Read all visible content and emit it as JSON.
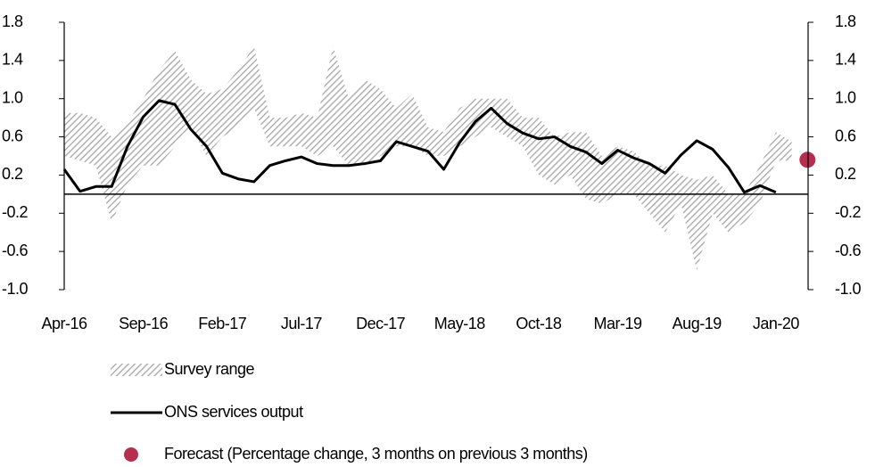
{
  "chart_data": {
    "type": "line",
    "categories": [
      "Apr-16",
      null,
      null,
      null,
      null,
      "Sep-16",
      null,
      null,
      null,
      null,
      "Feb-17",
      null,
      null,
      null,
      null,
      "Jul-17",
      null,
      null,
      null,
      null,
      "Dec-17",
      null,
      null,
      null,
      null,
      "May-18",
      null,
      null,
      null,
      null,
      "Oct-18",
      null,
      null,
      null,
      null,
      "Mar-19",
      null,
      null,
      null,
      null,
      "Aug-19",
      null,
      null,
      null,
      null,
      "Jan-20",
      null,
      null
    ],
    "series": [
      {
        "name": "Survey range",
        "type": "range",
        "color": "#a6a6a6",
        "low": [
          0.4,
          0.35,
          0.3,
          -0.3,
          0.1,
          0.3,
          0.3,
          0.5,
          0.7,
          0.4,
          0.6,
          0.7,
          0.9,
          0.5,
          0.5,
          0.5,
          0.4,
          0.5,
          0.3,
          0.3,
          0.4,
          0.5,
          0.5,
          0.4,
          0.4,
          0.5,
          0.6,
          0.7,
          0.6,
          0.5,
          0.2,
          0.1,
          0.2,
          -0.05,
          -0.1,
          0.0,
          0.0,
          -0.2,
          -0.4,
          -0.1,
          -0.8,
          -0.2,
          -0.4,
          -0.3,
          -0.1,
          0.35,
          0.35,
          null
        ],
        "high": [
          0.85,
          0.85,
          0.8,
          0.6,
          0.75,
          1.0,
          1.3,
          1.5,
          1.2,
          1.05,
          1.1,
          1.3,
          1.55,
          0.8,
          0.8,
          0.85,
          0.8,
          1.55,
          1.0,
          1.2,
          1.1,
          0.9,
          1.05,
          0.7,
          0.65,
          0.9,
          1.0,
          1.0,
          1.0,
          0.8,
          0.8,
          0.6,
          0.65,
          0.65,
          0.4,
          0.5,
          0.45,
          0.3,
          0.3,
          0.2,
          0.15,
          0.2,
          0.0,
          0.0,
          0.3,
          0.65,
          0.55,
          null
        ]
      },
      {
        "name": "ONS services output",
        "type": "line",
        "color": "#000000",
        "values": [
          0.26,
          0.03,
          0.08,
          0.08,
          0.5,
          0.81,
          0.98,
          0.94,
          0.68,
          0.5,
          0.22,
          0.16,
          0.13,
          0.3,
          0.35,
          0.39,
          0.32,
          0.3,
          0.3,
          0.32,
          0.35,
          0.55,
          0.5,
          0.45,
          0.26,
          0.54,
          0.76,
          0.9,
          0.74,
          0.64,
          0.58,
          0.6,
          0.5,
          0.44,
          0.32,
          0.46,
          0.38,
          0.32,
          0.22,
          0.41,
          0.56,
          0.47,
          0.28,
          0.02,
          0.09,
          0.02,
          null,
          null
        ]
      },
      {
        "name": "Forecast (Percentage change, 3 months on previous 3 months)",
        "type": "dot",
        "color": "#b5304f",
        "values": [
          null,
          null,
          null,
          null,
          null,
          null,
          null,
          null,
          null,
          null,
          null,
          null,
          null,
          null,
          null,
          null,
          null,
          null,
          null,
          null,
          null,
          null,
          null,
          null,
          null,
          null,
          null,
          null,
          null,
          null,
          null,
          null,
          null,
          null,
          null,
          null,
          null,
          null,
          null,
          null,
          null,
          null,
          null,
          null,
          null,
          null,
          null,
          0.36
        ]
      }
    ],
    "ylim": [
      -1.0,
      1.8
    ],
    "yticks": [
      {
        "value": -1,
        "label": "-1.0"
      },
      -0.6,
      -0.2,
      0.2,
      0.6,
      {
        "value": 1,
        "label": "1.0"
      },
      1.4,
      1.8
    ],
    "y2lim": [
      -1.0,
      1.8
    ],
    "y2ticks": [
      {
        "value": -1,
        "label": "-1.0"
      },
      -0.6,
      -0.2,
      0.2,
      0.6,
      {
        "value": 1,
        "label": "1.0"
      },
      1.4,
      1.8
    ],
    "grid": false,
    "legend": "bottom"
  }
}
